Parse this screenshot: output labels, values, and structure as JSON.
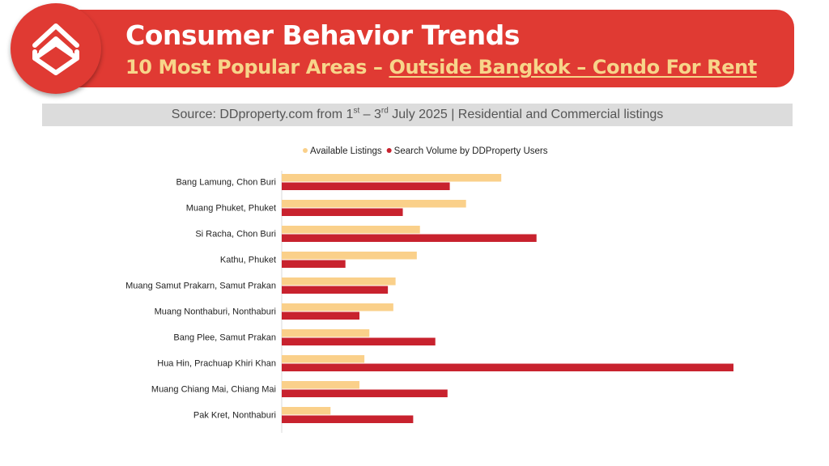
{
  "header": {
    "title": "Consumer Behavior Trends",
    "subtitle_prefix": "10 Most Popular Areas – ",
    "subtitle_link": "Outside Bangkok – Condo For Rent",
    "source_prefix": "Source: DDproperty.com from 1",
    "source_sup1": "st",
    "source_mid": " – 3",
    "source_sup2": "rd",
    "source_suffix": " July 2025 | Residential and Commercial listings"
  },
  "colors": {
    "banner": "#e03a33",
    "subtitle": "#f7d58a",
    "available": "#fad08a",
    "search": "#c8222e"
  },
  "logo_icon": "ddproperty-logo-icon",
  "chart_data": {
    "type": "bar",
    "orientation": "horizontal",
    "categories": [
      "Bang Lamung, Chon Buri",
      "Muang Phuket, Phuket",
      "Si Racha, Chon Buri",
      "Kathu, Phuket",
      "Muang Samut Prakarn, Samut Prakan",
      "Muang Nonthaburi, Nonthaburi",
      "Bang Plee, Samut Prakan",
      "Hua Hin, Prachuap Khiri Khan",
      "Muang Chiang Mai, Chiang Mai",
      "Pak Kret, Nonthaburi"
    ],
    "series": [
      {
        "name": "Available Listings",
        "color": "#fad08a",
        "values": [
          48.6,
          40.8,
          30.6,
          29.9,
          25.2,
          24.7,
          19.4,
          18.3,
          17.2,
          10.8
        ]
      },
      {
        "name": "Search Volume by DDProperty Users",
        "color": "#c8222e",
        "values": [
          37.2,
          26.8,
          56.4,
          14.1,
          23.5,
          17.2,
          34.0,
          100.0,
          36.7,
          29.1
        ]
      }
    ],
    "xlim": [
      0,
      100
    ],
    "legend": "top-center",
    "grid": false,
    "axis_values_shown": false
  }
}
